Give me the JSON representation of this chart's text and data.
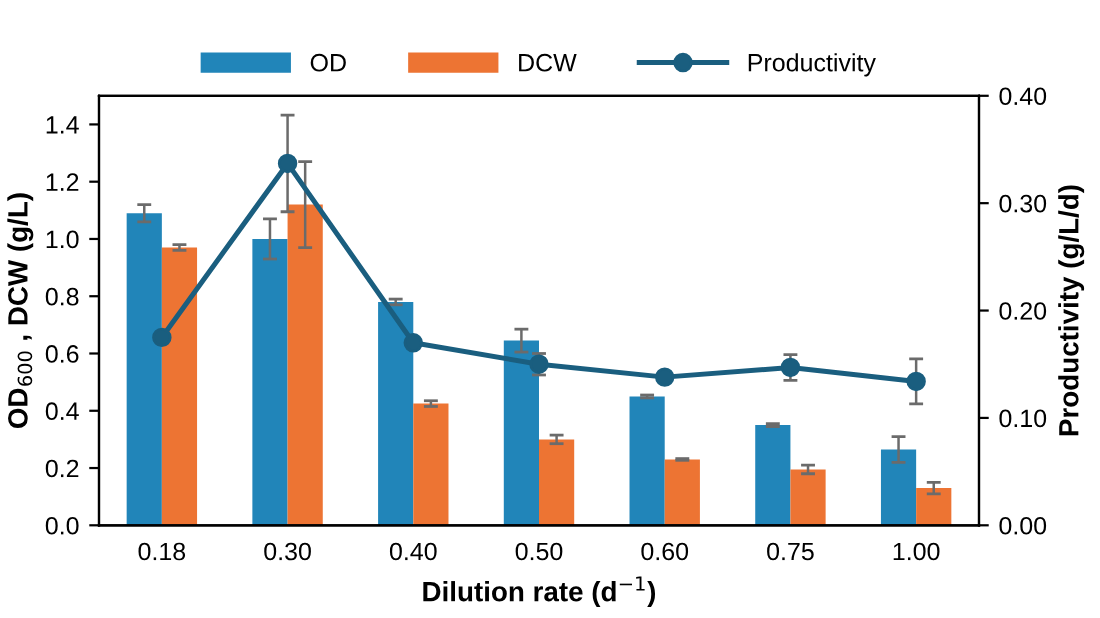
{
  "chart_data": {
    "type": "bar",
    "xlabel": "Dilution rate (d$^{−1}$)",
    "ylabel": "OD$_{600}$ , DCW (g/L)",
    "y2label": "Productivity (g/L/d)",
    "categories": [
      "0.18",
      "0.30",
      "0.40",
      "0.50",
      "0.60",
      "0.75",
      "1.00"
    ],
    "series": [
      {
        "name": "OD",
        "color": "#2185b9",
        "values": [
          1.09,
          1.0,
          0.78,
          0.645,
          0.45,
          0.35,
          0.265
        ],
        "errors": [
          0.03,
          0.07,
          0.01,
          0.04,
          0.005,
          0.005,
          0.045
        ]
      },
      {
        "name": "DCW",
        "color": "#ed7433",
        "values": [
          0.97,
          1.12,
          0.425,
          0.3,
          0.23,
          0.195,
          0.13
        ],
        "errors": [
          0.01,
          0.15,
          0.01,
          0.015,
          0.003,
          0.015,
          0.02
        ]
      },
      {
        "name": "Productivity",
        "type": "line",
        "axis": "y2",
        "color": "#1a5e7f",
        "marker": "circle",
        "values": [
          0.175,
          0.337,
          0.17,
          0.15,
          0.138,
          0.147,
          0.134
        ],
        "errors": [
          null,
          0.045,
          null,
          0.01,
          null,
          0.012,
          0.021
        ]
      }
    ],
    "ylim": [
      0,
      1.5
    ],
    "yticks": [
      {
        "value": 0,
        "label": "0.0"
      },
      {
        "value": 0.2,
        "label": "0.2"
      },
      {
        "value": 0.4,
        "label": "0.4"
      },
      {
        "value": 0.6,
        "label": "0.6"
      },
      {
        "value": 0.8,
        "label": "0.8"
      },
      {
        "value": 1.0,
        "label": "1.0"
      },
      {
        "value": 1.2,
        "label": "1.2"
      },
      {
        "value": 1.4,
        "label": "1.4"
      }
    ],
    "y2lim": [
      0,
      0.4
    ],
    "y2ticks": [
      {
        "value": 0,
        "label": "0.00"
      },
      {
        "value": 0.1,
        "label": "0.10"
      },
      {
        "value": 0.2,
        "label": "0.20"
      },
      {
        "value": 0.3,
        "label": "0.30"
      },
      {
        "value": 0.4,
        "label": "0.40"
      }
    ],
    "legend": "top",
    "grid": false
  }
}
